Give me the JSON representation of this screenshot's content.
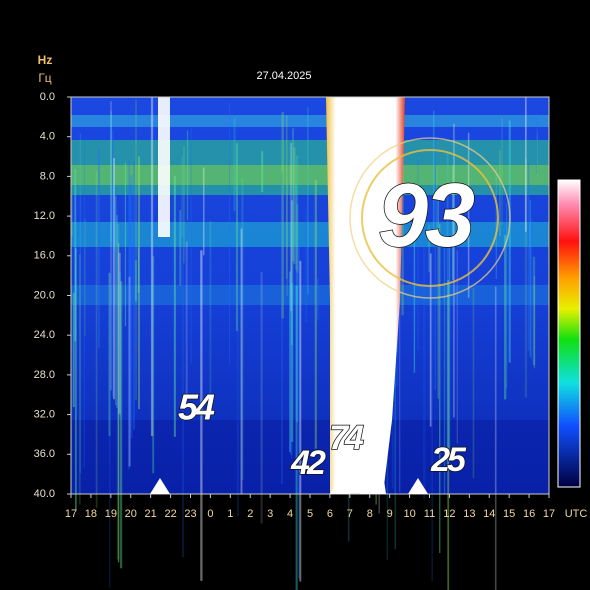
{
  "chart_data": {
    "type": "spectrogram",
    "title": "27.04.2025",
    "y_unit_labels": [
      "Hz",
      "Гц"
    ],
    "ylim": [
      0,
      40
    ],
    "y_inverted": true,
    "yticks": [
      {
        "value": 0,
        "label": "0.0"
      },
      {
        "value": 4,
        "label": "4.0"
      },
      {
        "value": 8,
        "label": "8.0"
      },
      {
        "value": 12,
        "label": "12.0"
      },
      {
        "value": 16,
        "label": "16.0"
      },
      {
        "value": 20,
        "label": "20.0"
      },
      {
        "value": 24,
        "label": "24.0"
      },
      {
        "value": 28,
        "label": "28.0"
      },
      {
        "value": 32,
        "label": "32.0"
      },
      {
        "value": 36,
        "label": "36.0"
      },
      {
        "value": 40,
        "label": "40.0"
      }
    ],
    "x_tick_labels": [
      "17",
      "18",
      "19",
      "20",
      "21",
      "22",
      "23",
      "0",
      "1",
      "2",
      "3",
      "4",
      "5",
      "6",
      "7",
      "8",
      "9",
      "10",
      "11",
      "12",
      "13",
      "14",
      "15",
      "16",
      "17"
    ],
    "x_unit": "UTC",
    "annotations": [
      "54",
      "42",
      "74",
      "93",
      "25"
    ]
  }
}
